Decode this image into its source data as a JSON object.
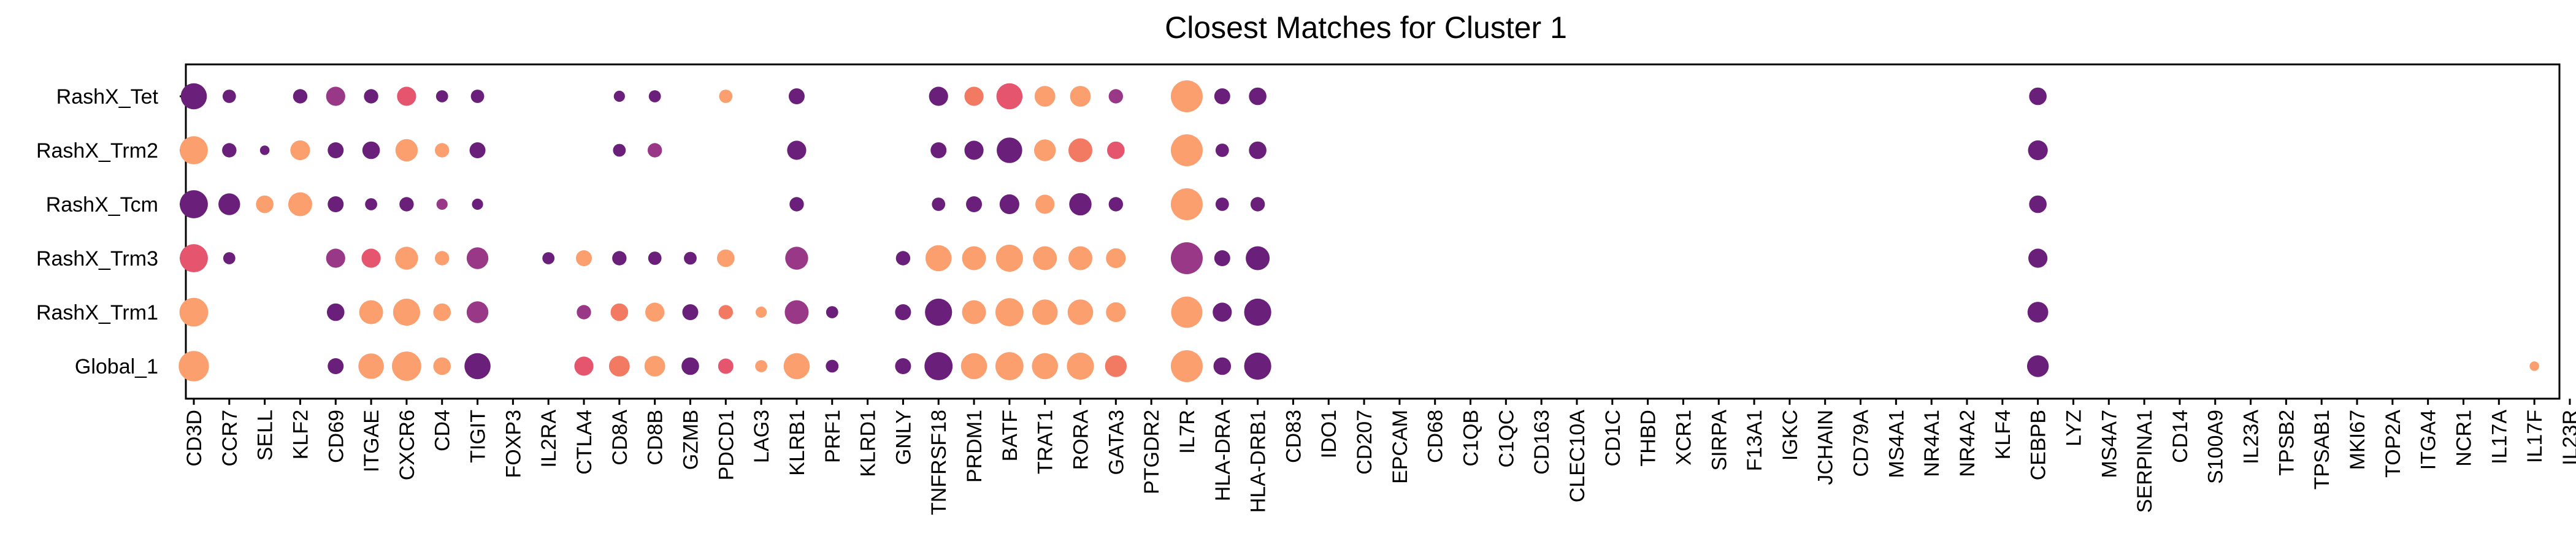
{
  "chart_data": {
    "type": "dotplot",
    "title": "Closest Matches for Cluster 1",
    "xlabel": "",
    "ylabel": "",
    "grid": false,
    "rows": [
      "RashX_Tet",
      "RashX_Trm2",
      "RashX_Tcm",
      "RashX_Trm3",
      "RashX_Trm1",
      "Global_1"
    ],
    "genes": [
      "CD3D",
      "CCR7",
      "SELL",
      "KLF2",
      "CD69",
      "ITGAE",
      "CXCR6",
      "CD4",
      "TIGIT",
      "FOXP3",
      "IL2RA",
      "CTLA4",
      "CD8A",
      "CD8B",
      "GZMB",
      "PDCD1",
      "LAG3",
      "KLRB1",
      "PRF1",
      "KLRD1",
      "GNLY",
      "TNFRSF18",
      "PRDM1",
      "BATF",
      "TRAT1",
      "RORA",
      "GATA3",
      "PTGDR2",
      "IL7R",
      "HLA-DRA",
      "HLA-DRB1",
      "CD83",
      "IDO1",
      "CD207",
      "EPCAM",
      "CD68",
      "C1QB",
      "C1QC",
      "CD163",
      "CLEC10A",
      "CD1C",
      "THBD",
      "XCR1",
      "SIRPA",
      "F13A1",
      "IGKC",
      "JCHAIN",
      "CD79A",
      "MS4A1",
      "NR4A1",
      "NR4A2",
      "KLF4",
      "CEBPB",
      "LYZ",
      "MS4A7",
      "SERPINA1",
      "CD14",
      "S100A9",
      "IL23A",
      "TPSB2",
      "TPSAB1",
      "MKI67",
      "TOP2A",
      "ITGA4",
      "NCR1",
      "IL17A",
      "IL17F",
      "IL23R"
    ],
    "colors": {
      "p": "#6a1f7a",
      "m": "#9a3888",
      "r": "#e5566e",
      "s": "#f27a62",
      "o": "#fb9f6f"
    },
    "points": {
      "RashX_Tet": [
        [
          "CD3D",
          0.82,
          "p"
        ],
        [
          "CCR7",
          0.42,
          "p"
        ],
        [
          "KLF2",
          0.45,
          "p"
        ],
        [
          "CD69",
          0.6,
          "m"
        ],
        [
          "ITGAE",
          0.45,
          "p"
        ],
        [
          "CXCR6",
          0.6,
          "r"
        ],
        [
          "CD4",
          0.38,
          "p"
        ],
        [
          "TIGIT",
          0.42,
          "p"
        ],
        [
          "CD8A",
          0.35,
          "p"
        ],
        [
          "CD8B",
          0.38,
          "p"
        ],
        [
          "PDCD1",
          0.42,
          "o"
        ],
        [
          "KLRB1",
          0.5,
          "p"
        ],
        [
          "TNFRSF18",
          0.6,
          "p"
        ],
        [
          "PRDM1",
          0.6,
          "s"
        ],
        [
          "BATF",
          0.82,
          "r"
        ],
        [
          "TRAT1",
          0.65,
          "o"
        ],
        [
          "RORA",
          0.65,
          "o"
        ],
        [
          "GATA3",
          0.45,
          "m"
        ],
        [
          "IL7R",
          1.0,
          "o"
        ],
        [
          "HLA-DRA",
          0.5,
          "p"
        ],
        [
          "HLA-DRB1",
          0.55,
          "p"
        ],
        [
          "CEBPB",
          0.55,
          "p"
        ]
      ],
      "RashX_Trm2": [
        [
          "CD3D",
          0.88,
          "o"
        ],
        [
          "CCR7",
          0.45,
          "p"
        ],
        [
          "SELL",
          0.3,
          "p"
        ],
        [
          "KLF2",
          0.62,
          "o"
        ],
        [
          "CD69",
          0.5,
          "p"
        ],
        [
          "ITGAE",
          0.55,
          "p"
        ],
        [
          "CXCR6",
          0.7,
          "o"
        ],
        [
          "CD4",
          0.45,
          "o"
        ],
        [
          "TIGIT",
          0.5,
          "p"
        ],
        [
          "CD8A",
          0.4,
          "p"
        ],
        [
          "CD8B",
          0.45,
          "m"
        ],
        [
          "KLRB1",
          0.6,
          "p"
        ],
        [
          "TNFRSF18",
          0.5,
          "p"
        ],
        [
          "PRDM1",
          0.6,
          "p"
        ],
        [
          "BATF",
          0.8,
          "p"
        ],
        [
          "TRAT1",
          0.68,
          "o"
        ],
        [
          "RORA",
          0.75,
          "s"
        ],
        [
          "GATA3",
          0.55,
          "r"
        ],
        [
          "IL7R",
          1.0,
          "o"
        ],
        [
          "HLA-DRA",
          0.42,
          "p"
        ],
        [
          "HLA-DRB1",
          0.55,
          "p"
        ],
        [
          "CEBPB",
          0.62,
          "p"
        ]
      ],
      "RashX_Tcm": [
        [
          "CD3D",
          0.88,
          "p"
        ],
        [
          "CCR7",
          0.68,
          "p"
        ],
        [
          "SELL",
          0.55,
          "o"
        ],
        [
          "KLF2",
          0.75,
          "o"
        ],
        [
          "CD69",
          0.5,
          "p"
        ],
        [
          "ITGAE",
          0.38,
          "p"
        ],
        [
          "CXCR6",
          0.45,
          "p"
        ],
        [
          "CD4",
          0.35,
          "m"
        ],
        [
          "TIGIT",
          0.35,
          "p"
        ],
        [
          "KLRB1",
          0.45,
          "p"
        ],
        [
          "TNFRSF18",
          0.42,
          "p"
        ],
        [
          "PRDM1",
          0.5,
          "p"
        ],
        [
          "BATF",
          0.62,
          "p"
        ],
        [
          "TRAT1",
          0.6,
          "o"
        ],
        [
          "RORA",
          0.7,
          "p"
        ],
        [
          "GATA3",
          0.45,
          "p"
        ],
        [
          "IL7R",
          1.0,
          "o"
        ],
        [
          "HLA-DRA",
          0.42,
          "p"
        ],
        [
          "HLA-DRB1",
          0.45,
          "p"
        ],
        [
          "CEBPB",
          0.55,
          "p"
        ]
      ],
      "RashX_Trm3": [
        [
          "CD3D",
          0.88,
          "r"
        ],
        [
          "CCR7",
          0.38,
          "p"
        ],
        [
          "CD69",
          0.6,
          "m"
        ],
        [
          "ITGAE",
          0.6,
          "r"
        ],
        [
          "CXCR6",
          0.72,
          "o"
        ],
        [
          "CD4",
          0.45,
          "o"
        ],
        [
          "TIGIT",
          0.68,
          "m"
        ],
        [
          "IL2RA",
          0.38,
          "p"
        ],
        [
          "CTLA4",
          0.5,
          "o"
        ],
        [
          "CD8A",
          0.45,
          "p"
        ],
        [
          "CD8B",
          0.42,
          "p"
        ],
        [
          "GZMB",
          0.4,
          "p"
        ],
        [
          "PDCD1",
          0.55,
          "o"
        ],
        [
          "KLRB1",
          0.72,
          "m"
        ],
        [
          "GNLY",
          0.45,
          "p"
        ],
        [
          "TNFRSF18",
          0.82,
          "o"
        ],
        [
          "PRDM1",
          0.75,
          "o"
        ],
        [
          "BATF",
          0.85,
          "o"
        ],
        [
          "TRAT1",
          0.75,
          "o"
        ],
        [
          "RORA",
          0.75,
          "o"
        ],
        [
          "GATA3",
          0.62,
          "o"
        ],
        [
          "IL7R",
          1.0,
          "m"
        ],
        [
          "HLA-DRA",
          0.5,
          "p"
        ],
        [
          "HLA-DRB1",
          0.75,
          "p"
        ],
        [
          "CEBPB",
          0.6,
          "p"
        ]
      ],
      "RashX_Trm1": [
        [
          "CD3D",
          0.9,
          "o"
        ],
        [
          "CD69",
          0.55,
          "p"
        ],
        [
          "ITGAE",
          0.75,
          "o"
        ],
        [
          "CXCR6",
          0.85,
          "o"
        ],
        [
          "CD4",
          0.55,
          "o"
        ],
        [
          "TIGIT",
          0.68,
          "m"
        ],
        [
          "CTLA4",
          0.45,
          "m"
        ],
        [
          "CD8A",
          0.55,
          "s"
        ],
        [
          "CD8B",
          0.6,
          "o"
        ],
        [
          "GZMB",
          0.5,
          "p"
        ],
        [
          "PDCD1",
          0.45,
          "s"
        ],
        [
          "LAG3",
          0.35,
          "o"
        ],
        [
          "KLRB1",
          0.75,
          "m"
        ],
        [
          "PRF1",
          0.38,
          "p"
        ],
        [
          "GNLY",
          0.5,
          "p"
        ],
        [
          "TNFRSF18",
          0.85,
          "p"
        ],
        [
          "PRDM1",
          0.75,
          "o"
        ],
        [
          "BATF",
          0.88,
          "o"
        ],
        [
          "TRAT1",
          0.8,
          "o"
        ],
        [
          "RORA",
          0.8,
          "o"
        ],
        [
          "GATA3",
          0.62,
          "o"
        ],
        [
          "IL7R",
          0.98,
          "o"
        ],
        [
          "HLA-DRA",
          0.6,
          "p"
        ],
        [
          "HLA-DRB1",
          0.85,
          "p"
        ],
        [
          "CEBPB",
          0.65,
          "p"
        ]
      ],
      "Global_1": [
        [
          "CD3D",
          0.95,
          "o"
        ],
        [
          "CD69",
          0.5,
          "p"
        ],
        [
          "ITGAE",
          0.8,
          "o"
        ],
        [
          "CXCR6",
          0.92,
          "o"
        ],
        [
          "CD4",
          0.55,
          "o"
        ],
        [
          "TIGIT",
          0.82,
          "p"
        ],
        [
          "CTLA4",
          0.6,
          "r"
        ],
        [
          "CD8A",
          0.65,
          "s"
        ],
        [
          "CD8B",
          0.65,
          "o"
        ],
        [
          "GZMB",
          0.55,
          "p"
        ],
        [
          "PDCD1",
          0.48,
          "r"
        ],
        [
          "LAG3",
          0.38,
          "o"
        ],
        [
          "KLRB1",
          0.82,
          "o"
        ],
        [
          "PRF1",
          0.4,
          "p"
        ],
        [
          "GNLY",
          0.5,
          "p"
        ],
        [
          "TNFRSF18",
          0.88,
          "p"
        ],
        [
          "PRDM1",
          0.82,
          "o"
        ],
        [
          "BATF",
          0.88,
          "o"
        ],
        [
          "TRAT1",
          0.82,
          "o"
        ],
        [
          "RORA",
          0.85,
          "o"
        ],
        [
          "GATA3",
          0.68,
          "s"
        ],
        [
          "IL7R",
          1.0,
          "o"
        ],
        [
          "HLA-DRA",
          0.55,
          "p"
        ],
        [
          "HLA-DRB1",
          0.85,
          "p"
        ],
        [
          "CEBPB",
          0.68,
          "p"
        ],
        [
          "IL17F",
          0.3,
          "o"
        ]
      ]
    }
  }
}
